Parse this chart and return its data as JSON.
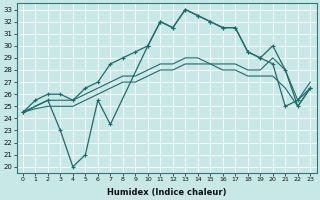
{
  "xlabel": "Humidex (Indice chaleur)",
  "xlim": [
    -0.5,
    23.5
  ],
  "ylim": [
    19.5,
    33.5
  ],
  "xticks": [
    0,
    1,
    2,
    3,
    4,
    5,
    6,
    7,
    8,
    9,
    10,
    11,
    12,
    13,
    14,
    15,
    16,
    17,
    18,
    19,
    20,
    21,
    22,
    23
  ],
  "yticks": [
    20,
    21,
    22,
    23,
    24,
    25,
    26,
    27,
    28,
    29,
    30,
    31,
    32,
    33
  ],
  "bg_color": "#c8e8e8",
  "line_color": "#1a6b6b",
  "grid_color": "#ffffff",
  "line1_x": [
    0,
    2,
    3,
    4,
    5,
    6,
    7,
    10,
    11,
    12,
    13,
    14,
    15,
    16,
    17,
    18,
    19,
    20,
    21,
    22,
    23
  ],
  "line1_y": [
    24.5,
    25.5,
    23.0,
    20.0,
    21.0,
    25.5,
    23.5,
    30.0,
    32.0,
    31.5,
    33.0,
    32.5,
    32.0,
    31.5,
    31.5,
    29.5,
    29.0,
    28.5,
    25.0,
    25.5,
    26.5
  ],
  "line2_x": [
    0,
    1,
    2,
    3,
    4,
    5,
    6,
    7,
    8,
    9,
    10,
    11,
    12,
    13,
    14,
    15,
    16,
    17,
    18,
    19,
    20,
    21,
    22,
    23
  ],
  "line2_y": [
    24.5,
    25.5,
    26.0,
    26.0,
    25.5,
    26.5,
    27.0,
    28.5,
    29.0,
    29.5,
    30.0,
    32.0,
    31.5,
    33.0,
    32.5,
    32.0,
    31.5,
    31.5,
    29.5,
    29.0,
    30.0,
    28.0,
    25.0,
    26.5
  ],
  "line3_x": [
    0,
    1,
    2,
    3,
    4,
    5,
    6,
    7,
    8,
    9,
    10,
    11,
    12,
    13,
    14,
    15,
    16,
    17,
    18,
    19,
    20,
    21,
    22,
    23
  ],
  "line3_y": [
    24.5,
    25.0,
    25.5,
    25.5,
    25.5,
    26.0,
    26.5,
    27.0,
    27.5,
    27.5,
    28.0,
    28.5,
    28.5,
    29.0,
    29.0,
    28.5,
    28.5,
    28.5,
    28.0,
    28.0,
    29.0,
    28.0,
    25.5,
    27.0
  ],
  "line4_x": [
    0,
    1,
    2,
    3,
    4,
    5,
    6,
    7,
    8,
    9,
    10,
    11,
    12,
    13,
    14,
    15,
    16,
    17,
    18,
    19,
    20,
    21,
    22,
    23
  ],
  "line4_y": [
    24.5,
    24.8,
    25.0,
    25.0,
    25.0,
    25.5,
    26.0,
    26.5,
    27.0,
    27.0,
    27.5,
    28.0,
    28.0,
    28.5,
    28.5,
    28.5,
    28.0,
    28.0,
    27.5,
    27.5,
    27.5,
    26.5,
    25.0,
    26.5
  ]
}
